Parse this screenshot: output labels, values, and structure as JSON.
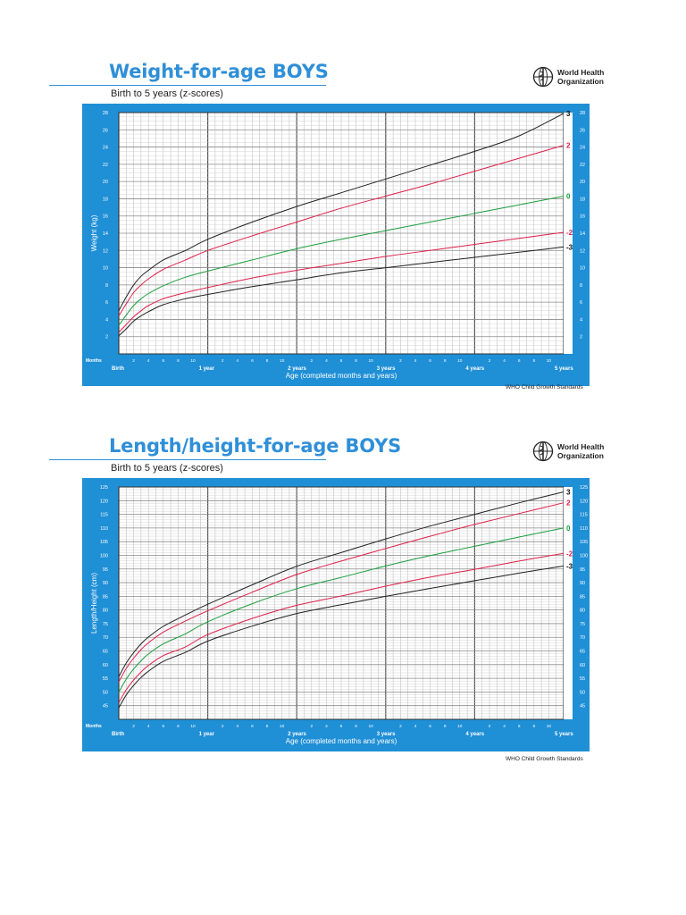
{
  "who": {
    "line1": "World Health",
    "line2": "Organization"
  },
  "chart_data": [
    {
      "type": "line",
      "title": "Weight-for-age BOYS",
      "subtitle": "Birth to 5 years (z-scores)",
      "ylabel": "Weight (kg)",
      "xlabel": "Age (completed months and years)",
      "ylim": [
        0,
        28
      ],
      "yticks": [
        2,
        4,
        6,
        8,
        10,
        12,
        14,
        16,
        18,
        20,
        22,
        24,
        26,
        28
      ],
      "xlim": [
        0,
        60
      ],
      "months_label": "Months",
      "month_ticks": [
        "2",
        "4",
        "6",
        "8",
        "10"
      ],
      "year_labels": [
        "Birth",
        "1 year",
        "2 years",
        "3 years",
        "4 years",
        "5 years"
      ],
      "footer": "WHO Child Growth Standards",
      "grid": true,
      "x": [
        0,
        1,
        2,
        3,
        4,
        6,
        9,
        12,
        18,
        24,
        30,
        36,
        42,
        48,
        54,
        60
      ],
      "series": [
        {
          "name": "3",
          "color": "#222222",
          "values": [
            5.0,
            6.6,
            8.0,
            9.0,
            9.7,
            10.9,
            12.0,
            13.3,
            15.3,
            17.1,
            18.7,
            20.3,
            21.9,
            23.5,
            25.3,
            27.9
          ]
        },
        {
          "name": "2",
          "color": "#e0204a",
          "values": [
            4.4,
            5.8,
            7.1,
            8.0,
            8.7,
            9.8,
            10.9,
            12.0,
            13.7,
            15.3,
            16.9,
            18.3,
            19.7,
            21.2,
            22.7,
            24.2
          ]
        },
        {
          "name": "0",
          "color": "#1a9e3c",
          "values": [
            3.3,
            4.5,
            5.6,
            6.4,
            7.0,
            7.9,
            8.9,
            9.6,
            10.9,
            12.2,
            13.3,
            14.3,
            15.3,
            16.3,
            17.3,
            18.3
          ]
        },
        {
          "name": "-2",
          "color": "#e0204a",
          "values": [
            2.5,
            3.4,
            4.3,
            5.0,
            5.6,
            6.4,
            7.1,
            7.7,
            8.8,
            9.7,
            10.5,
            11.3,
            12.0,
            12.7,
            13.4,
            14.1
          ]
        },
        {
          "name": "-3",
          "color": "#222222",
          "values": [
            2.1,
            2.9,
            3.8,
            4.4,
            4.9,
            5.7,
            6.4,
            6.9,
            7.8,
            8.6,
            9.4,
            10.0,
            10.6,
            11.2,
            11.8,
            12.4
          ]
        }
      ]
    },
    {
      "type": "line",
      "title": "Length/height-for-age BOYS",
      "subtitle": "Birth to 5 years (z-scores)",
      "ylabel": "Length/Height (cm)",
      "xlabel": "Age (completed months and years)",
      "ylim": [
        40,
        125
      ],
      "yticks": [
        45,
        50,
        55,
        60,
        65,
        70,
        75,
        80,
        85,
        90,
        95,
        100,
        105,
        110,
        115,
        120,
        125
      ],
      "xlim": [
        0,
        60
      ],
      "months_label": "Months",
      "month_ticks": [
        "2",
        "4",
        "6",
        "8",
        "10"
      ],
      "year_labels": [
        "Birth",
        "1 year",
        "2 years",
        "3 years",
        "4 years",
        "5 years"
      ],
      "footer": "WHO Child Growth Standards",
      "grid": true,
      "x": [
        0,
        1,
        2,
        3,
        4,
        6,
        9,
        12,
        18,
        24,
        30,
        36,
        42,
        48,
        54,
        60
      ],
      "series": [
        {
          "name": "3",
          "color": "#222222",
          "values": [
            55.6,
            60.6,
            64.4,
            67.6,
            70.1,
            74.0,
            78.2,
            82.1,
            89.2,
            96.0,
            101.0,
            106.0,
            110.7,
            115.0,
            119.2,
            123.2
          ]
        },
        {
          "name": "2",
          "color": "#e0204a",
          "values": [
            53.7,
            58.6,
            62.4,
            65.5,
            68.0,
            71.9,
            76.0,
            79.7,
            86.5,
            93.0,
            97.9,
            102.5,
            107.0,
            111.3,
            115.3,
            119.2
          ]
        },
        {
          "name": "0",
          "color": "#1a9e3c",
          "values": [
            49.9,
            54.7,
            58.4,
            61.4,
            63.9,
            67.6,
            71.3,
            75.7,
            82.3,
            87.8,
            91.9,
            96.1,
            99.9,
            103.3,
            106.7,
            110.0
          ]
        },
        {
          "name": "-2",
          "color": "#e0204a",
          "values": [
            46.1,
            50.8,
            54.4,
            57.3,
            59.7,
            63.3,
            66.5,
            71.0,
            76.9,
            81.7,
            85.1,
            88.7,
            92.0,
            94.9,
            97.9,
            100.7
          ]
        },
        {
          "name": "-3",
          "color": "#222222",
          "values": [
            44.2,
            48.9,
            52.4,
            55.3,
            57.6,
            61.2,
            64.5,
            68.6,
            74.1,
            78.7,
            81.9,
            85.0,
            87.9,
            90.7,
            93.5,
            96.1
          ]
        }
      ]
    }
  ]
}
